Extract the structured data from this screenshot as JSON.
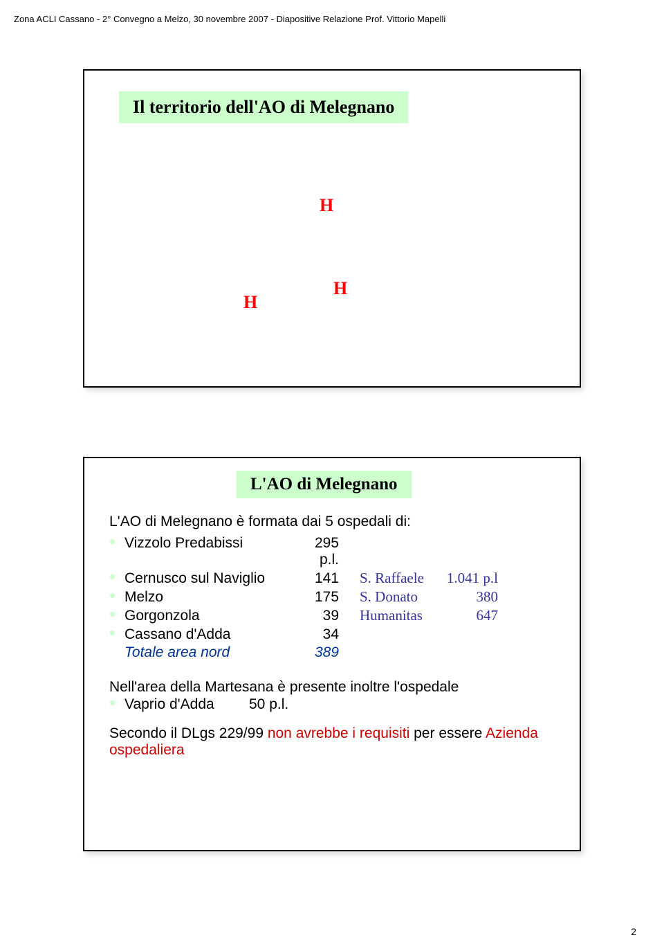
{
  "header": "Zona ACLI Cassano - 2° Convegno a Melzo, 30 novembre 2007 - Diapositive Relazione Prof. Vittorio Mapelli",
  "slide1": {
    "title": "Il territorio dell'AO di Melegnano",
    "markers": {
      "h1": "H",
      "h2": "H",
      "h3": "H"
    }
  },
  "slide2": {
    "title": "L'AO di Melegnano",
    "lead": "L'AO di Melegnano è formata dai 5 ospedali di:",
    "hospitals": [
      {
        "name": "Vizzolo Predabissi",
        "val": "295 p.l.",
        "extra_name": "",
        "extra_val": ""
      },
      {
        "name": "Cernusco sul Naviglio",
        "val": "141",
        "extra_name": "S. Raffaele",
        "extra_val": "1.041 p.l"
      },
      {
        "name": "Melzo",
        "val": "175",
        "extra_name": "S. Donato",
        "extra_val": "380"
      },
      {
        "name": "Gorgonzola",
        "val": "39",
        "extra_name": "Humanitas",
        "extra_val": "647"
      },
      {
        "name": "Cassano d'Adda",
        "val": "34",
        "extra_name": "",
        "extra_val": ""
      }
    ],
    "total": {
      "label": "Totale area nord",
      "val": "389"
    },
    "para1": "Nell'area della Martesana è presente inoltre l'ospedale",
    "vaprio": {
      "name": "Vaprio d'Adda",
      "val": "50 p.l."
    },
    "note_pre": "Secondo il DLgs 229/99 ",
    "note_red": "non avrebbe i requisiti",
    "note_post": " per essere ",
    "note_red2": "Azienda ospedaliera"
  },
  "page_number": "2",
  "colors": {
    "banner_bg": "#ccffcc",
    "marker": "#ff0000",
    "blue": "#003399",
    "extra_blue": "#333399",
    "red": "#cc0000"
  }
}
